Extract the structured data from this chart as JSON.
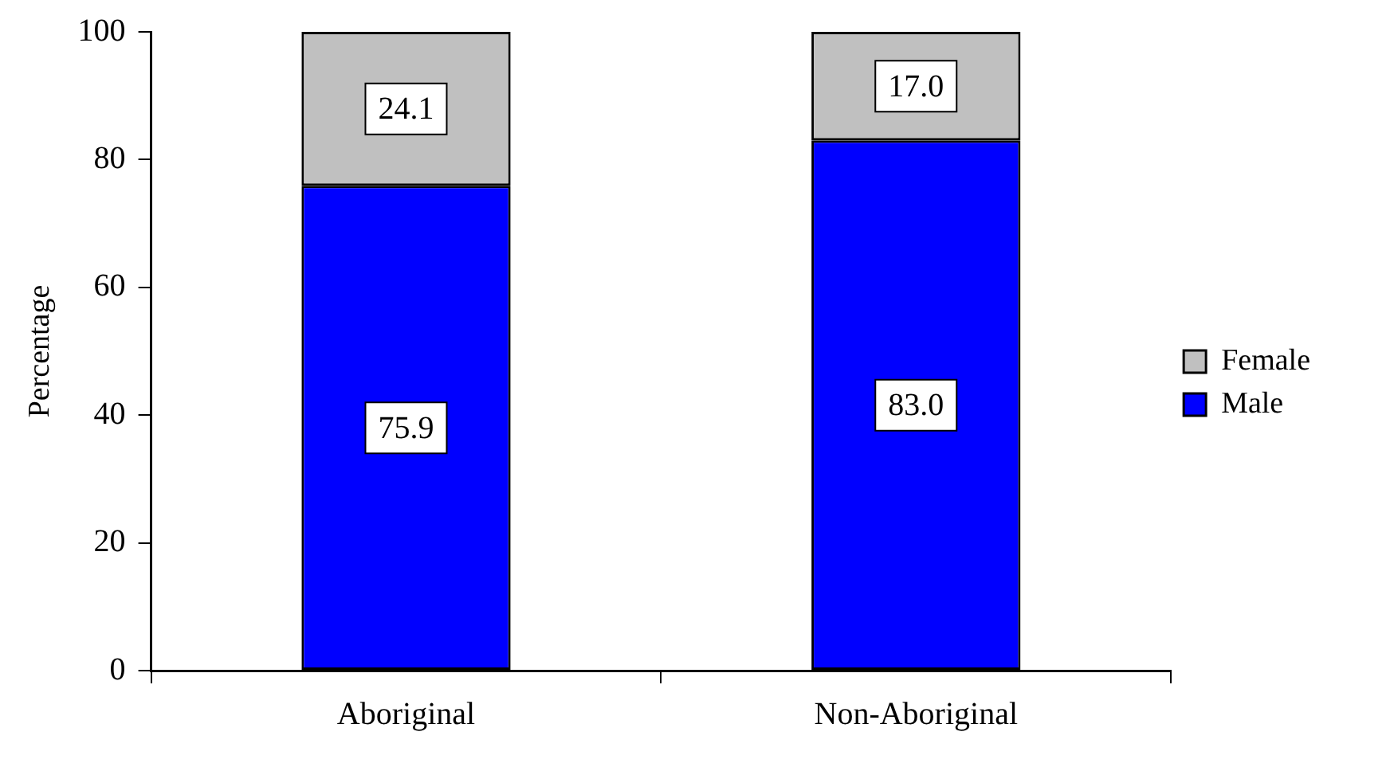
{
  "chart_data": {
    "type": "bar",
    "ylabel": "Percentage",
    "categories": [
      "Aboriginal",
      "Non-Aboriginal"
    ],
    "stacked": true,
    "legend": "right",
    "grid": false,
    "ylim": [
      0,
      100
    ],
    "yticks": [
      0,
      20,
      40,
      60,
      80,
      100
    ],
    "series": [
      {
        "name": "Male",
        "color": "#0000ff",
        "values": [
          75.9,
          83.0
        ],
        "value_labels": [
          "75.9",
          "83.0"
        ]
      },
      {
        "name": "Female",
        "color": "#c0c0c0",
        "values": [
          24.1,
          17.0
        ],
        "value_labels": [
          "24.1",
          "17.0"
        ]
      }
    ]
  }
}
